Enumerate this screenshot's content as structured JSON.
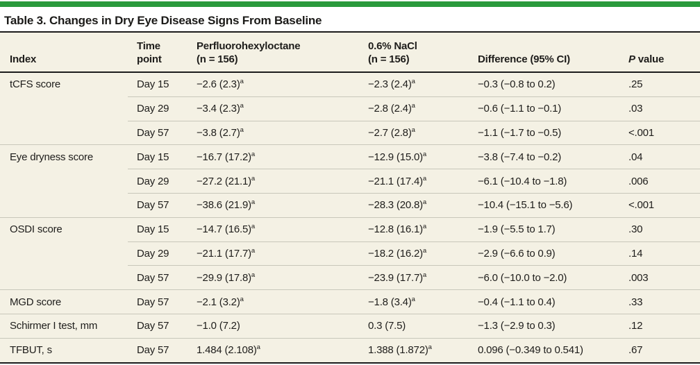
{
  "title": "Table 3. Changes in Dry Eye Disease Signs From Baseline",
  "colors": {
    "accent_green": "#2a9a3c",
    "table_background": "#f4f1e4",
    "row_separator": "#c8c7ba",
    "rule_dark": "#1b1b1b",
    "text": "#1e1d1b"
  },
  "chart_data": {
    "type": "table",
    "title": "Table 3. Changes in Dry Eye Disease Signs From Baseline",
    "columns": [
      "Index",
      "Time point",
      "Perfluorohexyloctane (n = 156)",
      "0.6% NaCl (n = 156)",
      "Difference (95% CI)",
      "P value"
    ]
  },
  "table": {
    "columns": [
      {
        "id": "index",
        "lines": [
          "Index"
        ]
      },
      {
        "id": "time",
        "lines": [
          "Time",
          "point"
        ]
      },
      {
        "id": "drug",
        "lines": [
          "Perfluorohexyloctane",
          "(n = 156)"
        ]
      },
      {
        "id": "nacl",
        "lines": [
          "0.6% NaCl",
          "(n = 156)"
        ]
      },
      {
        "id": "diff",
        "lines": [
          "Difference (95% CI)"
        ]
      },
      {
        "id": "p",
        "lines": [
          "P value"
        ],
        "italic_first_word": true
      }
    ],
    "rows": [
      {
        "section_start": true,
        "index": "tCFS score",
        "time": "Day 15",
        "drug": "−2.6 (2.3)",
        "drug_sup": "a",
        "nacl": "−2.3 (2.4)",
        "nacl_sup": "a",
        "diff": "−0.3 (−0.8 to 0.2)",
        "p": ".25"
      },
      {
        "section_start": false,
        "index": "",
        "time": "Day 29",
        "drug": "−3.4 (2.3)",
        "drug_sup": "a",
        "nacl": "−2.8 (2.4)",
        "nacl_sup": "a",
        "diff": "−0.6 (−1.1 to −0.1)",
        "p": ".03"
      },
      {
        "section_start": false,
        "index": "",
        "time": "Day 57",
        "drug": "−3.8 (2.7)",
        "drug_sup": "a",
        "nacl": "−2.7 (2.8)",
        "nacl_sup": "a",
        "diff": "−1.1 (−1.7 to −0.5)",
        "p": "<.001"
      },
      {
        "section_start": true,
        "index": "Eye dryness score",
        "time": "Day 15",
        "drug": "−16.7 (17.2)",
        "drug_sup": "a",
        "nacl": "−12.9 (15.0)",
        "nacl_sup": "a",
        "diff": "−3.8 (−7.4 to −0.2)",
        "p": ".04"
      },
      {
        "section_start": false,
        "index": "",
        "time": "Day 29",
        "drug": "−27.2 (21.1)",
        "drug_sup": "a",
        "nacl": "−21.1 (17.4)",
        "nacl_sup": "a",
        "diff": "−6.1 (−10.4 to −1.8)",
        "p": ".006"
      },
      {
        "section_start": false,
        "index": "",
        "time": "Day 57",
        "drug": "−38.6 (21.9)",
        "drug_sup": "a",
        "nacl": "−28.3 (20.8)",
        "nacl_sup": "a",
        "diff": "−10.4 (−15.1 to −5.6)",
        "p": "<.001"
      },
      {
        "section_start": true,
        "index": "OSDI score",
        "time": "Day 15",
        "drug": "−14.7 (16.5)",
        "drug_sup": "a",
        "nacl": "−12.8 (16.1)",
        "nacl_sup": "a",
        "diff": "−1.9 (−5.5 to 1.7)",
        "p": ".30"
      },
      {
        "section_start": false,
        "index": "",
        "time": "Day 29",
        "drug": "−21.1 (17.7)",
        "drug_sup": "a",
        "nacl": "−18.2 (16.2)",
        "nacl_sup": "a",
        "diff": "−2.9 (−6.6 to 0.9)",
        "p": ".14"
      },
      {
        "section_start": false,
        "index": "",
        "time": "Day 57",
        "drug": "−29.9 (17.8)",
        "drug_sup": "a",
        "nacl": "−23.9 (17.7)",
        "nacl_sup": "a",
        "diff": "−6.0 (−10.0 to −2.0)",
        "p": ".003"
      },
      {
        "section_start": true,
        "index": "MGD score",
        "time": "Day 57",
        "drug": "−2.1 (3.2)",
        "drug_sup": "a",
        "nacl": "−1.8 (3.4)",
        "nacl_sup": "a",
        "diff": "−0.4 (−1.1 to 0.4)",
        "p": ".33"
      },
      {
        "section_start": true,
        "index": "Schirmer I test, mm",
        "time": "Day 57",
        "drug": "−1.0 (7.2)",
        "drug_sup": "",
        "nacl": "0.3 (7.5)",
        "nacl_sup": "",
        "diff": "−1.3 (−2.9 to 0.3)",
        "p": ".12"
      },
      {
        "section_start": true,
        "index": "TFBUT, s",
        "time": "Day 57",
        "drug": "1.484 (2.108)",
        "drug_sup": "a",
        "nacl": "1.388 (1.872)",
        "nacl_sup": "a",
        "diff": "0.096 (−0.349 to 0.541)",
        "p": ".67"
      }
    ]
  }
}
